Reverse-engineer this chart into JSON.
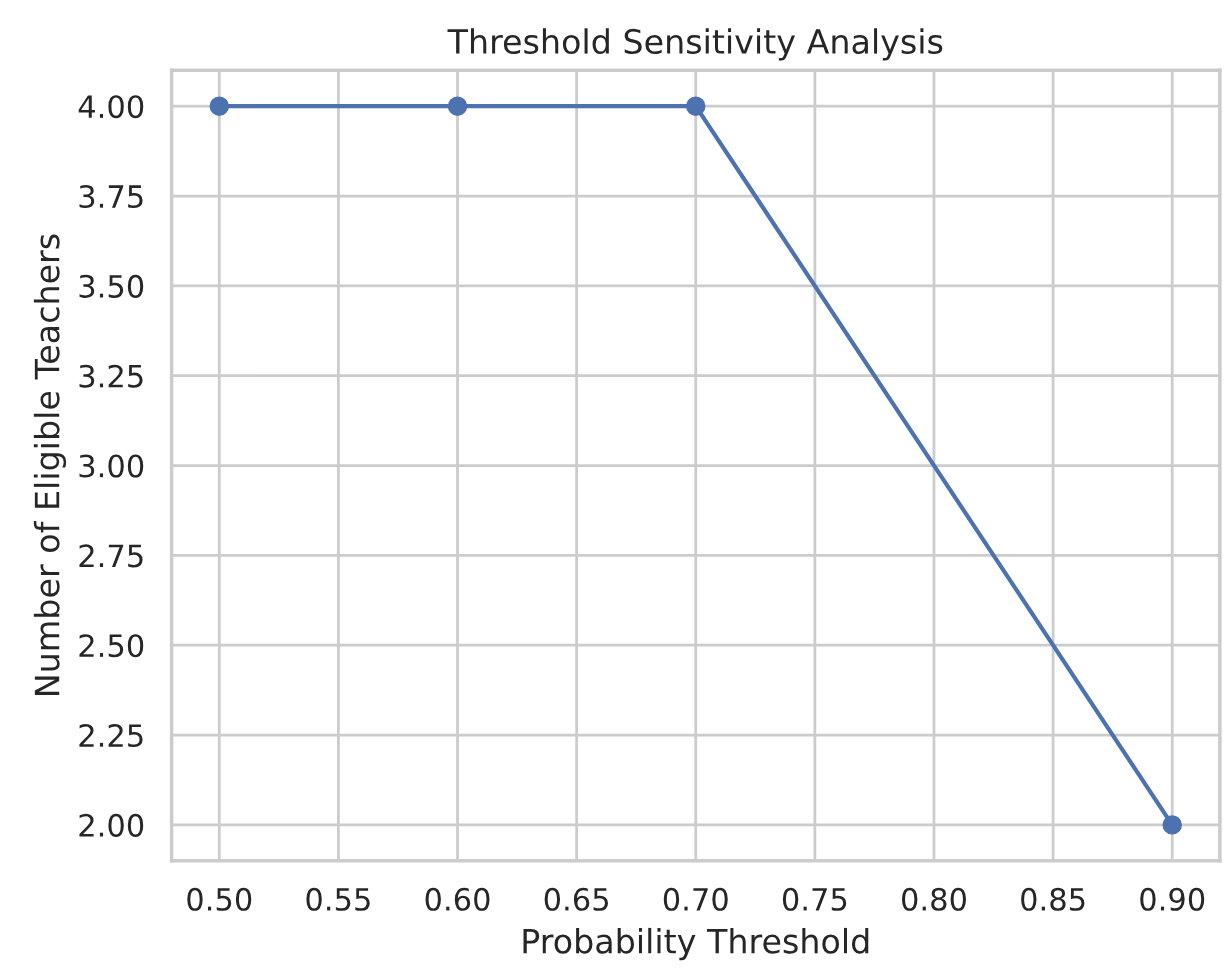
{
  "chart_data": {
    "type": "line",
    "title": "Threshold Sensitivity Analysis",
    "xlabel": "Probability Threshold",
    "ylabel": "Number of Eligible Teachers",
    "x": [
      0.5,
      0.6,
      0.7,
      0.9
    ],
    "series": [
      {
        "color": "#4c72b0",
        "values": [
          4,
          4,
          4,
          2
        ]
      }
    ],
    "xlim": [
      0.48,
      0.92
    ],
    "xticks": [
      {
        "value": 0.5,
        "label": "0.50"
      },
      {
        "value": 0.55,
        "label": "0.55"
      },
      {
        "value": 0.6,
        "label": "0.60"
      },
      {
        "value": 0.65,
        "label": "0.65"
      },
      {
        "value": 0.7,
        "label": "0.70"
      },
      {
        "value": 0.75,
        "label": "0.75"
      },
      {
        "value": 0.8,
        "label": "0.80"
      },
      {
        "value": 0.85,
        "label": "0.85"
      },
      {
        "value": 0.9,
        "label": "0.90"
      }
    ],
    "ylim": [
      1.9,
      4.1
    ],
    "yticks": [
      {
        "value": 2,
        "label": "2.00"
      },
      {
        "value": 2.25,
        "label": "2.25"
      },
      {
        "value": 2.5,
        "label": "2.50"
      },
      {
        "value": 2.75,
        "label": "2.75"
      },
      {
        "value": 3,
        "label": "3.00"
      },
      {
        "value": 3.25,
        "label": "3.25"
      },
      {
        "value": 3.5,
        "label": "3.50"
      },
      {
        "value": 3.75,
        "label": "3.75"
      },
      {
        "value": 4,
        "label": "4.00"
      }
    ],
    "grid": true,
    "marker": "circle",
    "line_style": "solid",
    "legend": false
  }
}
